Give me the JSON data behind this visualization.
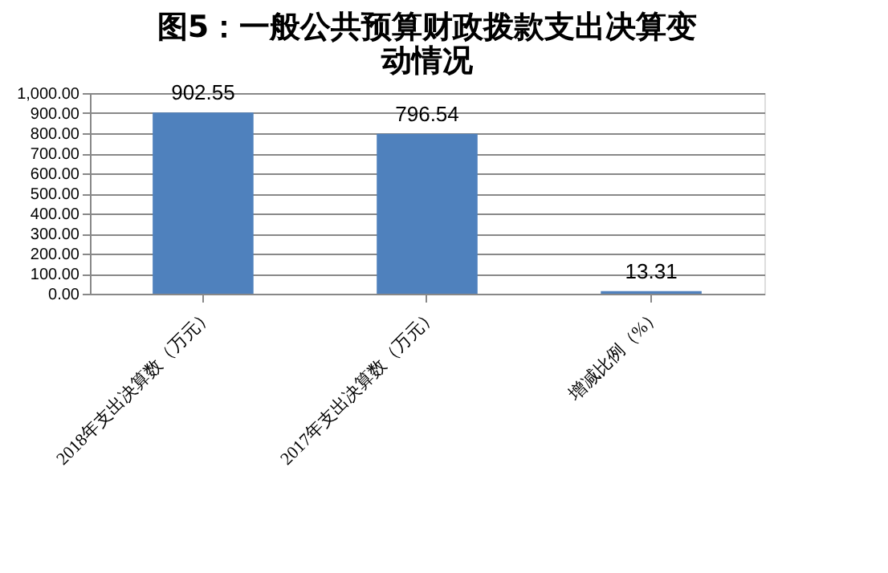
{
  "chart_data": {
    "type": "bar",
    "title": "图5：一般公共预算财政拨款支出决算变动情况",
    "categories": [
      "2018年支出决算数（万元）",
      "2017年支出决算数（万元）",
      "增减比例（%）"
    ],
    "values": [
      902.55,
      796.54,
      13.31
    ],
    "color": "#4f81bd",
    "data_labels": true,
    "ylim": [
      0,
      1000
    ],
    "yticks": [
      {
        "value": 0,
        "label": "0.00"
      },
      {
        "value": 100,
        "label": "100.00"
      },
      {
        "value": 200,
        "label": "200.00"
      },
      {
        "value": 300,
        "label": "300.00"
      },
      {
        "value": 400,
        "label": "400.00"
      },
      {
        "value": 500,
        "label": "500.00"
      },
      {
        "value": 600,
        "label": "600.00"
      },
      {
        "value": 700,
        "label": "700.00"
      },
      {
        "value": 800,
        "label": "800.00"
      },
      {
        "value": 900,
        "label": "900.00"
      },
      {
        "value": 1000,
        "label": "1,000.00"
      }
    ],
    "grid": "y"
  }
}
